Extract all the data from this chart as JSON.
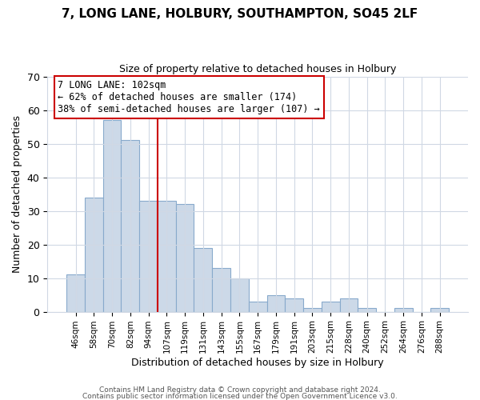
{
  "title": "7, LONG LANE, HOLBURY, SOUTHAMPTON, SO45 2LF",
  "subtitle": "Size of property relative to detached houses in Holbury",
  "xlabel": "Distribution of detached houses by size in Holbury",
  "ylabel": "Number of detached properties",
  "bar_labels": [
    "46sqm",
    "58sqm",
    "70sqm",
    "82sqm",
    "94sqm",
    "107sqm",
    "119sqm",
    "131sqm",
    "143sqm",
    "155sqm",
    "167sqm",
    "179sqm",
    "191sqm",
    "203sqm",
    "215sqm",
    "228sqm",
    "240sqm",
    "252sqm",
    "264sqm",
    "276sqm",
    "288sqm"
  ],
  "bar_values": [
    11,
    34,
    57,
    51,
    33,
    33,
    32,
    19,
    13,
    10,
    3,
    5,
    4,
    1,
    3,
    4,
    1,
    0,
    1,
    0,
    1
  ],
  "bar_color": "#ccd9e8",
  "bar_edge_color": "#88aacc",
  "vline_color": "#cc0000",
  "annotation_text": "7 LONG LANE: 102sqm\n← 62% of detached houses are smaller (174)\n38% of semi-detached houses are larger (107) →",
  "annotation_box_color": "#ffffff",
  "annotation_box_edge": "#cc0000",
  "ylim": [
    0,
    70
  ],
  "yticks": [
    0,
    10,
    20,
    30,
    40,
    50,
    60,
    70
  ],
  "footer1": "Contains HM Land Registry data © Crown copyright and database right 2024.",
  "footer2": "Contains public sector information licensed under the Open Government Licence v3.0.",
  "background_color": "#ffffff",
  "grid_color": "#d0d8e4"
}
